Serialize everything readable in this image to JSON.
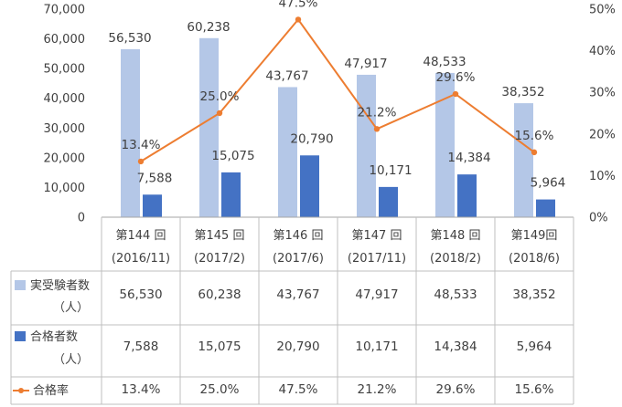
{
  "chart_data": {
    "type": "bar",
    "categories": [
      [
        "第144 回",
        "(2016/11)"
      ],
      [
        "第145 回",
        "(2017/2)"
      ],
      [
        "第146 回",
        "(2017/6)"
      ],
      [
        "第147 回",
        "(2017/11)"
      ],
      [
        "第148 回",
        "(2018/2)"
      ],
      [
        "第149回",
        "(2018/6)"
      ]
    ],
    "series": [
      {
        "name": [
          "実受験者数",
          "（人）"
        ],
        "type": "bar",
        "axis": "left",
        "color": "#b4c7e7",
        "values": [
          56530,
          60238,
          43767,
          47917,
          48533,
          38352
        ],
        "labels": [
          "56,530",
          "60,238",
          "43,767",
          "47,917",
          "48,533",
          "38,352"
        ]
      },
      {
        "name": [
          "合格者数",
          "（人）"
        ],
        "type": "bar",
        "axis": "left",
        "color": "#4472c4",
        "values": [
          7588,
          15075,
          20790,
          10171,
          14384,
          5964
        ],
        "labels": [
          "7,588",
          "15,075",
          "20,790",
          "10,171",
          "14,384",
          "5,964"
        ]
      },
      {
        "name": [
          "合格率"
        ],
        "type": "line",
        "axis": "right",
        "color": "#ed7d31",
        "values": [
          13.4,
          25.0,
          47.5,
          21.2,
          29.6,
          15.6
        ],
        "labels": [
          "13.4%",
          "25.0%",
          "47.5%",
          "21.2%",
          "29.6%",
          "15.6%"
        ]
      }
    ],
    "y_left": {
      "range": [
        0,
        70000
      ],
      "ticks": [
        "0",
        "10,000",
        "20,000",
        "30,000",
        "40,000",
        "50,000",
        "60,000",
        "70,000"
      ]
    },
    "y_right": {
      "range": [
        0,
        50
      ],
      "ticks": [
        "0%",
        "10%",
        "20%",
        "30%",
        "40%",
        "50%"
      ]
    },
    "legend": "data-table",
    "grid": false
  }
}
